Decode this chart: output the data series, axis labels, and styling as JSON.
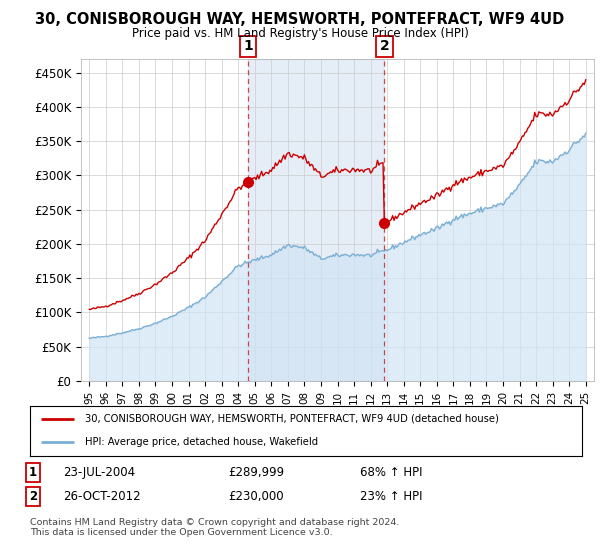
{
  "title": "30, CONISBOROUGH WAY, HEMSWORTH, PONTEFRACT, WF9 4UD",
  "subtitle": "Price paid vs. HM Land Registry's House Price Index (HPI)",
  "ylabel_ticks": [
    "£0",
    "£50K",
    "£100K",
    "£150K",
    "£200K",
    "£250K",
    "£300K",
    "£350K",
    "£400K",
    "£450K"
  ],
  "ytick_vals": [
    0,
    50000,
    100000,
    150000,
    200000,
    250000,
    300000,
    350000,
    400000,
    450000
  ],
  "ylim": [
    0,
    470000
  ],
  "sale1_year_f": 2004.583,
  "sale2_year_f": 2012.833,
  "sale1_date": "23-JUL-2004",
  "sale1_price": 289999,
  "sale1_hpi": "68% ↑ HPI",
  "sale2_date": "26-OCT-2012",
  "sale2_price": 230000,
  "sale2_hpi": "23% ↑ HPI",
  "legend_line1": "30, CONISBOROUGH WAY, HEMSWORTH, PONTEFRACT, WF9 4UD (detached house)",
  "legend_line2": "HPI: Average price, detached house, Wakefield",
  "footer": "Contains HM Land Registry data © Crown copyright and database right 2024.\nThis data is licensed under the Open Government Licence v3.0.",
  "hpi_fill_color": "#d0e4f5",
  "hpi_fill_alpha": 0.7,
  "shade_color": "#ccddf0",
  "shade_alpha": 0.5,
  "price_color": "#cc0000",
  "hpi_line_color": "#7bafd4",
  "background_color": "#ffffff",
  "plot_bg_color": "#ffffff",
  "grid_color": "#cccccc",
  "xlim_left": 1994.5,
  "xlim_right": 2025.5
}
